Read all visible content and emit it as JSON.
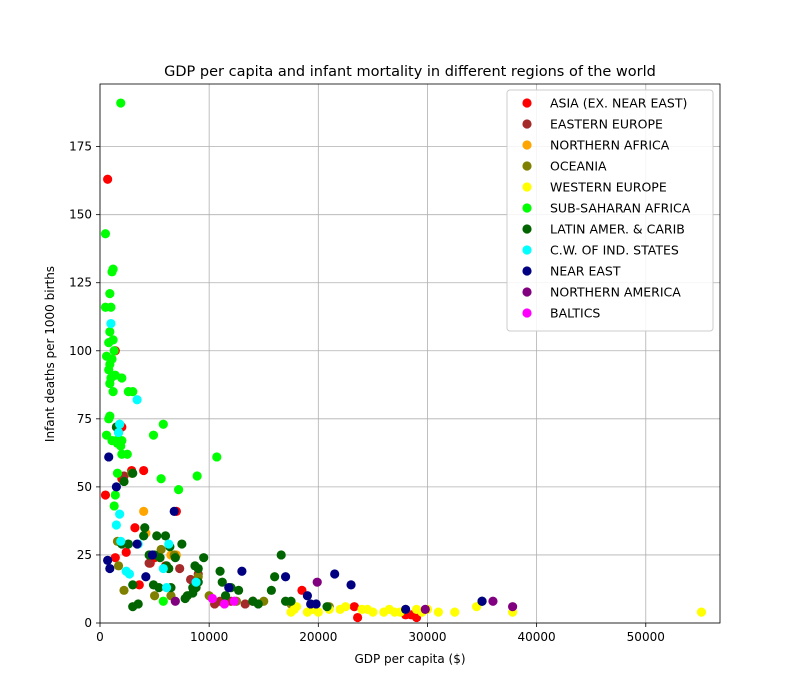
{
  "chart_data": {
    "type": "scatter",
    "title": "GDP per capita and infant mortality in different regions of the world",
    "xlabel": "GDP per capita ($)",
    "ylabel": "Infant deaths per 1000 births",
    "xlim": [
      0,
      56800
    ],
    "ylim": [
      0,
      198
    ],
    "xticks": [
      0,
      10000,
      20000,
      30000,
      40000,
      50000
    ],
    "yticks": [
      0,
      25,
      50,
      75,
      100,
      125,
      150,
      175
    ],
    "grid": true,
    "legend_position": "top-right",
    "series": [
      {
        "name": "ASIA (EX. NEAR EAST)",
        "color": "#ff0000",
        "points": [
          [
            700,
            163
          ],
          [
            1400,
            100
          ],
          [
            2000,
            72
          ],
          [
            500,
            47
          ],
          [
            2000,
            53
          ],
          [
            2400,
            26
          ],
          [
            1400,
            24
          ],
          [
            2900,
            56
          ],
          [
            3200,
            35
          ],
          [
            4000,
            56
          ],
          [
            5000,
            24
          ],
          [
            7000,
            41
          ],
          [
            6000,
            21
          ],
          [
            4600,
            22
          ],
          [
            3600,
            14
          ],
          [
            18500,
            12
          ],
          [
            23300,
            6
          ],
          [
            23600,
            2
          ],
          [
            28500,
            3
          ],
          [
            29000,
            2
          ],
          [
            28000,
            3
          ]
        ]
      },
      {
        "name": "EASTERN EUROPE",
        "color": "#a52a2a",
        "points": [
          [
            2200,
            54
          ],
          [
            4500,
            22
          ],
          [
            7300,
            20
          ],
          [
            8300,
            16
          ],
          [
            9000,
            18
          ],
          [
            11000,
            8
          ],
          [
            12000,
            8
          ],
          [
            13300,
            7
          ],
          [
            14000,
            8
          ],
          [
            10500,
            7
          ]
        ]
      },
      {
        "name": "NORTHERN AFRICA",
        "color": "#ffa500",
        "points": [
          [
            4000,
            41
          ],
          [
            6500,
            25
          ],
          [
            7000,
            25
          ],
          [
            4200,
            33
          ]
        ]
      },
      {
        "name": "OCEANIA",
        "color": "#808000",
        "points": [
          [
            1600,
            30
          ],
          [
            1700,
            21
          ],
          [
            2200,
            12
          ],
          [
            2900,
            55
          ],
          [
            5000,
            10
          ],
          [
            5600,
            27
          ],
          [
            6500,
            10
          ],
          [
            6800,
            25
          ],
          [
            9000,
            17
          ],
          [
            12500,
            8
          ],
          [
            15000,
            8
          ],
          [
            17500,
            7
          ],
          [
            21000,
            6
          ],
          [
            10000,
            10
          ]
        ]
      },
      {
        "name": "WESTERN EUROPE",
        "color": "#ffff00",
        "points": [
          [
            17500,
            4
          ],
          [
            17800,
            5
          ],
          [
            18000,
            6
          ],
          [
            19000,
            4
          ],
          [
            19500,
            5
          ],
          [
            20000,
            4
          ],
          [
            21000,
            5
          ],
          [
            22000,
            5
          ],
          [
            22500,
            6
          ],
          [
            24500,
            5
          ],
          [
            25000,
            4
          ],
          [
            26500,
            5
          ],
          [
            27000,
            4
          ],
          [
            27500,
            4
          ],
          [
            28000,
            5
          ],
          [
            29000,
            5
          ],
          [
            29500,
            4
          ],
          [
            30000,
            5
          ],
          [
            31000,
            4
          ],
          [
            32500,
            4
          ],
          [
            34500,
            6
          ],
          [
            37800,
            4
          ],
          [
            55100,
            4
          ],
          [
            24000,
            5
          ],
          [
            26000,
            4
          ]
        ]
      },
      {
        "name": "SUB-SAHARAN AFRICA",
        "color": "#00ff00",
        "points": [
          [
            1900,
            191
          ],
          [
            500,
            143
          ],
          [
            1200,
            130
          ],
          [
            1100,
            129
          ],
          [
            900,
            121
          ],
          [
            500,
            116
          ],
          [
            1000,
            116
          ],
          [
            1200,
            104
          ],
          [
            800,
            103
          ],
          [
            900,
            107
          ],
          [
            1300,
            100
          ],
          [
            600,
            98
          ],
          [
            1100,
            97
          ],
          [
            900,
            95
          ],
          [
            800,
            93
          ],
          [
            1000,
            90
          ],
          [
            900,
            88
          ],
          [
            1200,
            85
          ],
          [
            1400,
            91
          ],
          [
            2000,
            90
          ],
          [
            2600,
            85
          ],
          [
            3000,
            85
          ],
          [
            900,
            76
          ],
          [
            800,
            75
          ],
          [
            600,
            69
          ],
          [
            1800,
            73
          ],
          [
            1500,
            67
          ],
          [
            1600,
            66
          ],
          [
            2000,
            67
          ],
          [
            4900,
            69
          ],
          [
            5800,
            73
          ],
          [
            1700,
            70
          ],
          [
            2000,
            62
          ],
          [
            2500,
            62
          ],
          [
            1600,
            55
          ],
          [
            5600,
            53
          ],
          [
            10700,
            61
          ],
          [
            8900,
            54
          ],
          [
            1400,
            47
          ],
          [
            7200,
            49
          ],
          [
            1300,
            43
          ],
          [
            5800,
            8
          ],
          [
            1900,
            65
          ],
          [
            1100,
            67
          ]
        ]
      },
      {
        "name": "LATIN AMER. & CARIB",
        "color": "#006400",
        "points": [
          [
            1500,
            72
          ],
          [
            2200,
            52
          ],
          [
            3000,
            55
          ],
          [
            2000,
            29
          ],
          [
            2600,
            29
          ],
          [
            4100,
            35
          ],
          [
            4000,
            32
          ],
          [
            5200,
            32
          ],
          [
            6000,
            32
          ],
          [
            6400,
            28
          ],
          [
            7500,
            29
          ],
          [
            4500,
            25
          ],
          [
            5000,
            25
          ],
          [
            5500,
            24
          ],
          [
            6900,
            24
          ],
          [
            9500,
            24
          ],
          [
            6100,
            21
          ],
          [
            6300,
            20
          ],
          [
            8700,
            21
          ],
          [
            9000,
            20
          ],
          [
            4900,
            14
          ],
          [
            5400,
            13
          ],
          [
            6500,
            13
          ],
          [
            8500,
            13
          ],
          [
            8800,
            13
          ],
          [
            7800,
            9
          ],
          [
            8500,
            11
          ],
          [
            9000,
            15
          ],
          [
            11000,
            19
          ],
          [
            11200,
            15
          ],
          [
            12000,
            13
          ],
          [
            15700,
            12
          ],
          [
            16000,
            17
          ],
          [
            16600,
            25
          ],
          [
            17000,
            8
          ],
          [
            17500,
            8
          ],
          [
            12700,
            12
          ],
          [
            3000,
            14
          ],
          [
            3500,
            7
          ],
          [
            3000,
            6
          ],
          [
            14000,
            8
          ],
          [
            14500,
            7
          ],
          [
            20800,
            6
          ],
          [
            35000,
            8
          ],
          [
            11500,
            10
          ],
          [
            8000,
            10
          ]
        ]
      },
      {
        "name": "C.W. OF IND. STATES",
        "color": "#00ffff",
        "points": [
          [
            1000,
            110
          ],
          [
            3400,
            82
          ],
          [
            1800,
            73
          ],
          [
            1700,
            70
          ],
          [
            1500,
            36
          ],
          [
            1800,
            40
          ],
          [
            1900,
            30
          ],
          [
            2700,
            18
          ],
          [
            3500,
            29
          ],
          [
            5800,
            20
          ],
          [
            6100,
            13
          ],
          [
            6300,
            29
          ],
          [
            8800,
            15
          ],
          [
            2400,
            19
          ]
        ]
      },
      {
        "name": "NEAR EAST",
        "color": "#000080",
        "points": [
          [
            800,
            61
          ],
          [
            1500,
            50
          ],
          [
            700,
            23
          ],
          [
            900,
            20
          ],
          [
            3400,
            29
          ],
          [
            4800,
            25
          ],
          [
            4200,
            17
          ],
          [
            6800,
            41
          ],
          [
            11800,
            13
          ],
          [
            13000,
            19
          ],
          [
            17000,
            17
          ],
          [
            19000,
            10
          ],
          [
            19300,
            7
          ],
          [
            19800,
            7
          ],
          [
            21500,
            18
          ],
          [
            23000,
            14
          ],
          [
            28000,
            5
          ],
          [
            35000,
            8
          ]
        ]
      },
      {
        "name": "NORTHERN AMERICA",
        "color": "#800080",
        "points": [
          [
            6900,
            8
          ],
          [
            19900,
            15
          ],
          [
            29800,
            5
          ],
          [
            36000,
            8
          ],
          [
            37800,
            6
          ]
        ]
      },
      {
        "name": "BALTICS",
        "color": "#ff00ff",
        "points": [
          [
            10300,
            9
          ],
          [
            11400,
            7
          ],
          [
            12300,
            8
          ]
        ]
      }
    ]
  }
}
